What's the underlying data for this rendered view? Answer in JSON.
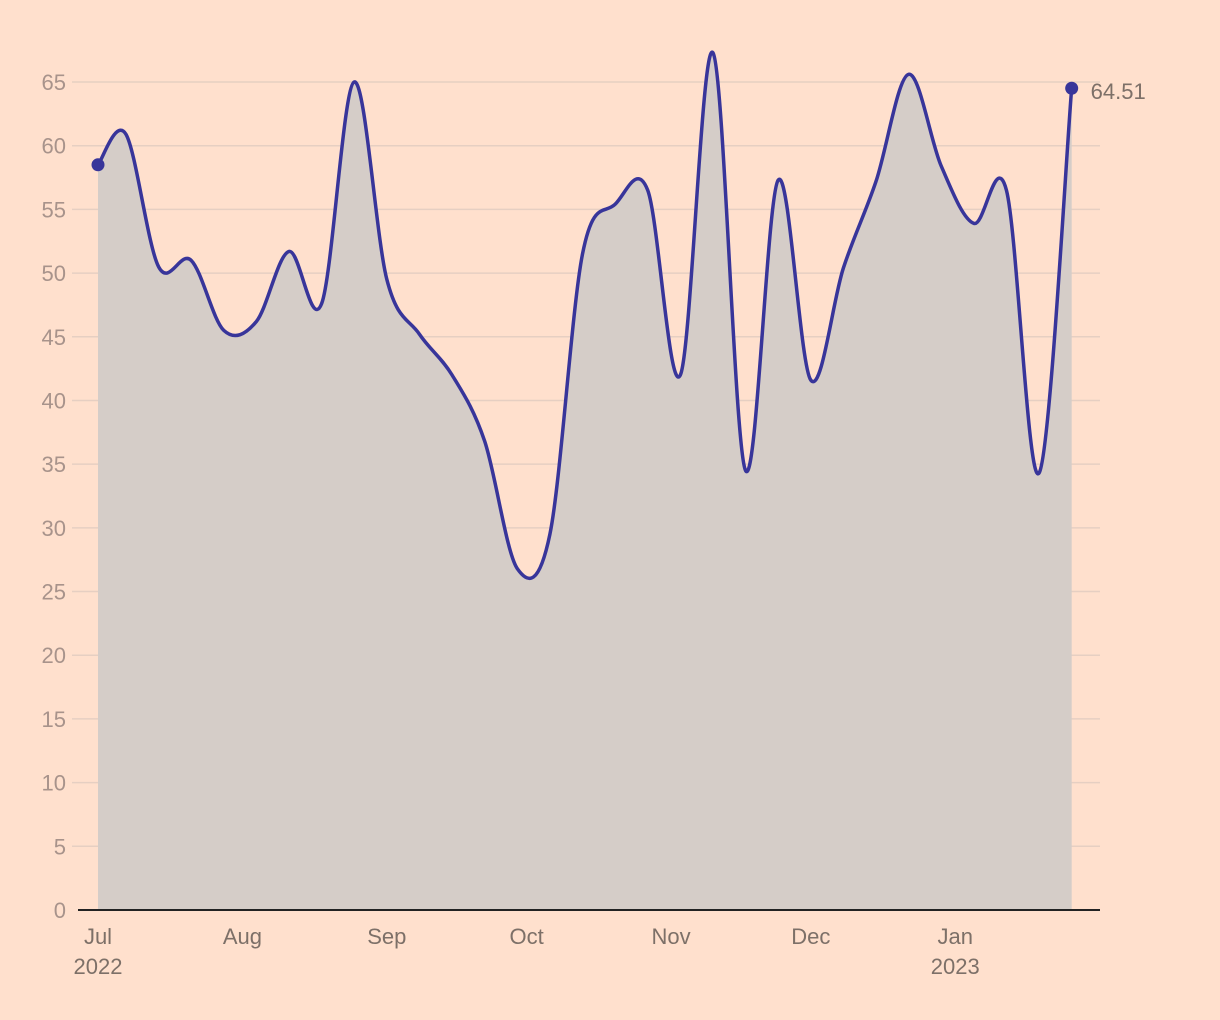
{
  "colors": {
    "background": "#ffe0cd",
    "line": "#38359a",
    "area": "#d5cdc8",
    "grid": "#e6cfc2"
  },
  "chart_data": {
    "type": "area",
    "title": "",
    "xlabel": "",
    "ylabel": "",
    "ylim": [
      0,
      65
    ],
    "y_ticks": [
      0,
      5,
      10,
      15,
      20,
      25,
      30,
      35,
      40,
      45,
      50,
      55,
      60,
      65
    ],
    "grid": "horizontal",
    "x_ticks": [
      {
        "date": "2022-07-01",
        "label": "Jul",
        "sub": "2022"
      },
      {
        "date": "2022-08-01",
        "label": "Aug",
        "sub": ""
      },
      {
        "date": "2022-09-01",
        "label": "Sep",
        "sub": ""
      },
      {
        "date": "2022-10-01",
        "label": "Oct",
        "sub": ""
      },
      {
        "date": "2022-11-01",
        "label": "Nov",
        "sub": ""
      },
      {
        "date": "2022-12-01",
        "label": "Dec",
        "sub": ""
      },
      {
        "date": "2023-01-01",
        "label": "Jan",
        "sub": "2023"
      }
    ],
    "x_range": [
      "2022-07-01",
      "2023-01-28"
    ],
    "end_label": "64.51",
    "series": [
      {
        "x": [
          "2022-07-01",
          "2022-07-07",
          "2022-07-14",
          "2022-07-21",
          "2022-07-28",
          "2022-08-04",
          "2022-08-11",
          "2022-08-18",
          "2022-08-25",
          "2022-09-01",
          "2022-09-08",
          "2022-09-15",
          "2022-09-22",
          "2022-09-29",
          "2022-10-06",
          "2022-10-13",
          "2022-10-20",
          "2022-10-27",
          "2022-11-03",
          "2022-11-10",
          "2022-11-17",
          "2022-11-24",
          "2022-12-01",
          "2022-12-08",
          "2022-12-15",
          "2022-12-22",
          "2022-12-29",
          "2023-01-05",
          "2023-01-12",
          "2023-01-19",
          "2023-01-26"
        ],
        "y": [
          58.5,
          60.9,
          50.5,
          51.0,
          45.5,
          46.2,
          51.7,
          47.6,
          65.0,
          49.5,
          45.2,
          42.0,
          36.8,
          26.8,
          29.5,
          51.5,
          55.4,
          56.5,
          42.0,
          67.3,
          34.5,
          57.3,
          41.6,
          50.4,
          57.2,
          65.6,
          58.4,
          53.9,
          56.5,
          34.3,
          64.51
        ]
      }
    ]
  }
}
